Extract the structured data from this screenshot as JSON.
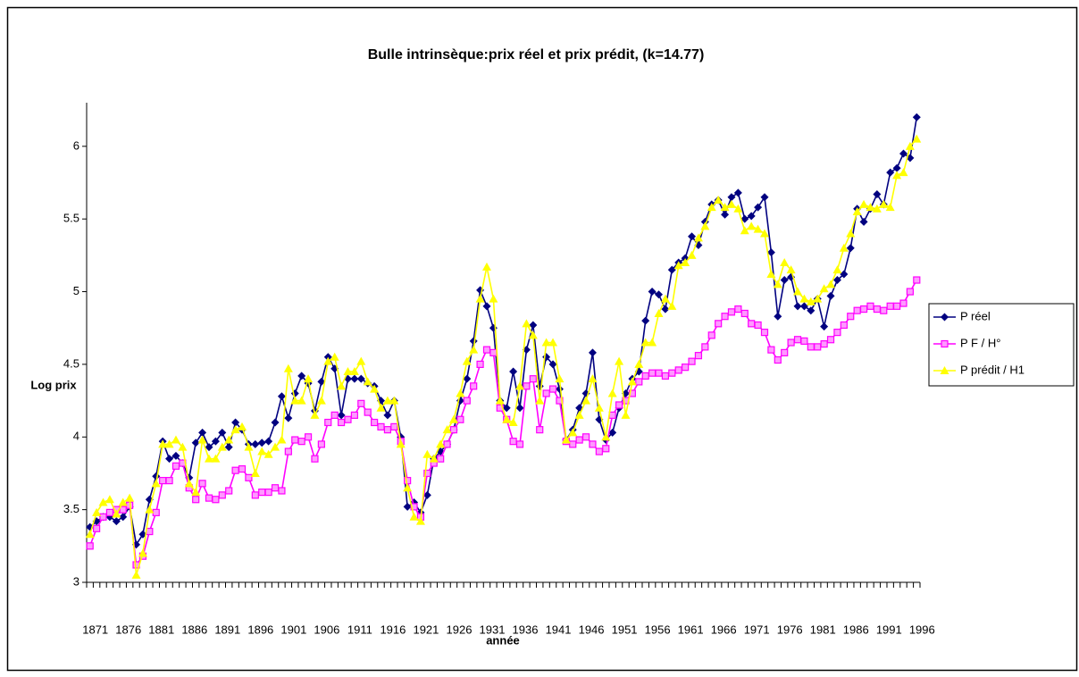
{
  "chart_data": {
    "type": "line",
    "title": "Bulle intrinsèque:prix réel et prix prédit, (k=14.77)",
    "x_label": "année",
    "y_label": "Log prix",
    "categories": [
      "1871",
      null,
      null,
      null,
      null,
      "1876",
      null,
      null,
      null,
      null,
      "1881",
      null,
      null,
      null,
      null,
      "1886",
      null,
      null,
      null,
      null,
      "1891",
      null,
      null,
      null,
      null,
      "1896",
      null,
      null,
      null,
      null,
      "1901",
      null,
      null,
      null,
      null,
      "1906",
      null,
      null,
      null,
      null,
      "1911",
      null,
      null,
      null,
      null,
      "1916",
      null,
      null,
      null,
      null,
      "1921",
      null,
      null,
      null,
      null,
      "1926",
      null,
      null,
      null,
      null,
      "1931",
      null,
      null,
      null,
      null,
      "1936",
      null,
      null,
      null,
      null,
      "1941",
      null,
      null,
      null,
      null,
      "1946",
      null,
      null,
      null,
      null,
      "1951",
      null,
      null,
      null,
      null,
      "1956",
      null,
      null,
      null,
      null,
      "1961",
      null,
      null,
      null,
      null,
      "1966",
      null,
      null,
      null,
      null,
      "1971",
      null,
      null,
      null,
      null,
      "1976",
      null,
      null,
      null,
      null,
      "1981",
      null,
      null,
      null,
      null,
      "1986",
      null,
      null,
      null,
      null,
      "1991",
      null,
      null,
      null,
      null,
      "1996"
    ],
    "series": [
      {
        "name": "P réel",
        "color": "#000080",
        "marker": "diamond",
        "values": [
          3.38,
          3.42,
          3.45,
          3.45,
          3.42,
          3.45,
          3.52,
          3.26,
          3.33,
          3.57,
          3.73,
          3.97,
          3.85,
          3.87,
          3.82,
          3.72,
          3.96,
          4.03,
          3.93,
          3.97,
          4.03,
          3.93,
          4.1,
          4.05,
          3.95,
          3.95,
          3.96,
          3.97,
          4.1,
          4.28,
          4.13,
          4.3,
          4.42,
          4.37,
          4.18,
          4.38,
          4.55,
          4.47,
          4.15,
          4.4,
          4.4,
          4.4,
          4.37,
          4.35,
          4.25,
          4.15,
          4.25,
          4.0,
          3.52,
          3.55,
          3.48,
          3.6,
          3.85,
          3.9,
          3.95,
          4.05,
          4.25,
          4.4,
          4.66,
          5.01,
          4.9,
          4.75,
          4.25,
          4.2,
          4.45,
          4.2,
          4.6,
          4.77,
          4.35,
          4.55,
          4.5,
          4.33,
          3.98,
          4.05,
          4.2,
          4.3,
          4.58,
          4.12,
          3.98,
          4.03,
          4.2,
          4.3,
          4.4,
          4.45,
          4.8,
          5.0,
          4.98,
          4.88,
          5.15,
          5.2,
          5.23,
          5.38,
          5.32,
          5.48,
          5.6,
          5.63,
          5.53,
          5.65,
          5.68,
          5.5,
          5.52,
          5.58,
          5.65,
          5.27,
          4.83,
          5.08,
          5.1,
          4.9,
          4.9,
          4.87,
          4.95,
          4.76,
          4.97,
          5.08,
          5.12,
          5.3,
          5.57,
          5.48,
          5.57,
          5.67,
          5.6,
          5.82,
          5.85,
          5.95,
          5.92,
          6.2
        ]
      },
      {
        "name": "P F / H°",
        "color": "#ff00ff",
        "marker": "square",
        "values": [
          3.25,
          3.37,
          3.45,
          3.48,
          3.5,
          3.5,
          3.53,
          3.12,
          3.18,
          3.35,
          3.48,
          3.7,
          3.7,
          3.8,
          3.82,
          3.65,
          3.57,
          3.68,
          3.58,
          3.57,
          3.6,
          3.63,
          3.77,
          3.78,
          3.72,
          3.6,
          3.62,
          3.62,
          3.65,
          3.63,
          3.9,
          3.98,
          3.97,
          4.0,
          3.85,
          3.95,
          4.1,
          4.15,
          4.1,
          4.12,
          4.15,
          4.23,
          4.17,
          4.1,
          4.07,
          4.05,
          4.07,
          3.97,
          3.7,
          3.52,
          3.45,
          3.75,
          3.82,
          3.85,
          3.95,
          4.05,
          4.12,
          4.25,
          4.35,
          4.5,
          4.6,
          4.58,
          4.2,
          4.12,
          3.97,
          3.95,
          4.35,
          4.4,
          4.05,
          4.3,
          4.33,
          4.25,
          3.97,
          3.95,
          3.98,
          4.0,
          3.95,
          3.9,
          3.92,
          4.15,
          4.22,
          4.25,
          4.3,
          4.38,
          4.42,
          4.44,
          4.44,
          4.42,
          4.44,
          4.46,
          4.48,
          4.52,
          4.56,
          4.62,
          4.7,
          4.78,
          4.83,
          4.86,
          4.88,
          4.85,
          4.78,
          4.77,
          4.72,
          4.6,
          4.53,
          4.58,
          4.65,
          4.67,
          4.66,
          4.62,
          4.62,
          4.64,
          4.67,
          4.72,
          4.77,
          4.83,
          4.87,
          4.88,
          4.9,
          4.88,
          4.87,
          4.9,
          4.9,
          4.92,
          5.0,
          5.08
        ]
      },
      {
        "name": "P prédit / H1",
        "color": "#ffff00",
        "marker": "triangle",
        "values": [
          3.33,
          3.48,
          3.55,
          3.57,
          3.47,
          3.55,
          3.58,
          3.05,
          3.2,
          3.5,
          3.68,
          3.95,
          3.95,
          3.98,
          3.93,
          3.68,
          3.62,
          3.98,
          3.85,
          3.85,
          3.93,
          3.98,
          4.05,
          4.07,
          3.93,
          3.75,
          3.9,
          3.88,
          3.93,
          3.98,
          4.47,
          4.25,
          4.25,
          4.4,
          4.15,
          4.25,
          4.52,
          4.55,
          4.35,
          4.45,
          4.45,
          4.52,
          4.38,
          4.33,
          4.2,
          4.25,
          4.25,
          3.95,
          3.65,
          3.45,
          3.42,
          3.88,
          3.85,
          3.95,
          4.05,
          4.12,
          4.3,
          4.52,
          4.6,
          4.95,
          5.17,
          4.95,
          4.25,
          4.12,
          4.1,
          4.35,
          4.78,
          4.7,
          4.25,
          4.65,
          4.65,
          4.4,
          3.98,
          4.03,
          4.15,
          4.25,
          4.4,
          4.2,
          4.0,
          4.3,
          4.52,
          4.15,
          4.38,
          4.5,
          4.65,
          4.65,
          4.85,
          4.95,
          4.9,
          5.18,
          5.2,
          5.25,
          5.37,
          5.45,
          5.58,
          5.63,
          5.58,
          5.6,
          5.57,
          5.42,
          5.45,
          5.43,
          5.4,
          5.12,
          5.05,
          5.2,
          5.15,
          5.0,
          4.95,
          4.93,
          4.95,
          5.02,
          5.05,
          5.15,
          5.3,
          5.4,
          5.55,
          5.6,
          5.58,
          5.57,
          5.6,
          5.58,
          5.8,
          5.82,
          6.0,
          6.05
        ]
      }
    ],
    "ylim": [
      3,
      6.3
    ],
    "yticks": [
      3,
      3.5,
      4,
      4.5,
      5,
      5.5,
      6
    ],
    "grid": false,
    "legend": "right"
  }
}
